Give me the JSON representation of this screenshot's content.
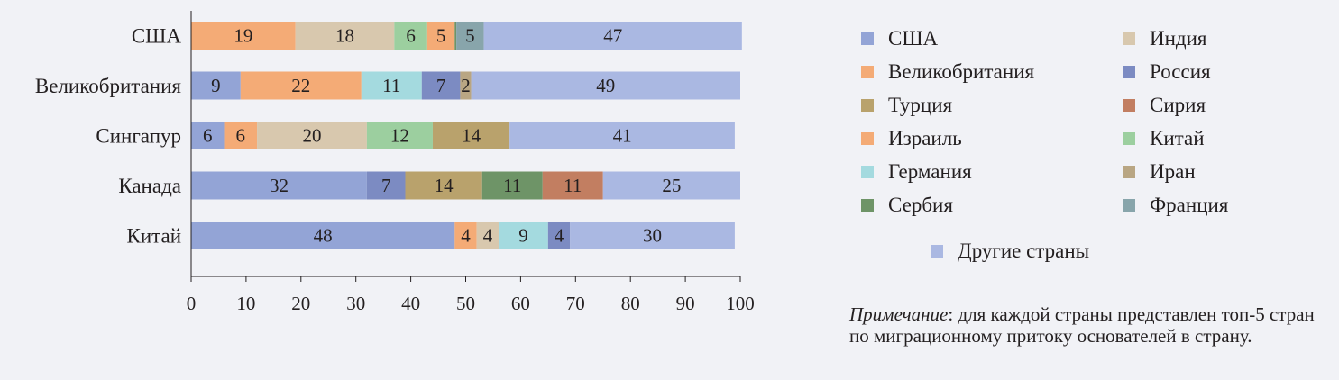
{
  "chart_data": {
    "type": "bar",
    "orientation": "horizontal",
    "stacked": true,
    "xlim": [
      0,
      100
    ],
    "xticks": [
      0,
      10,
      20,
      30,
      40,
      50,
      60,
      70,
      80,
      90,
      100
    ],
    "grid": false,
    "legend_position": "right",
    "colors": {
      "США": "#93a4d6",
      "Великобритания": "#f4ab76",
      "Турция": "#b9a26c",
      "Израиль": "#f4ab76",
      "Германия": "#a4dadf",
      "Сербия": "#6e9467",
      "Индия": "#d8c8ae",
      "Россия": "#7c8bc2",
      "Сирия": "#c27e61",
      "Китай": "#9ccf9f",
      "Иран": "#b9a683",
      "Франция": "#88a5ab",
      "Другие страны": "#aab8e2"
    },
    "bars": [
      {
        "label": "США",
        "segments": [
          {
            "origin": "Великобритания",
            "value": 19
          },
          {
            "origin": "Индия",
            "value": 18
          },
          {
            "origin": "Китай",
            "value": 6
          },
          {
            "origin": "Израиль",
            "value": 5
          },
          {
            "origin": "Сербия",
            "value": 0.3,
            "label": ""
          },
          {
            "origin": "Франция",
            "value": 5
          },
          {
            "origin": "Другие страны",
            "value": 47
          }
        ]
      },
      {
        "label": "Великобритания",
        "segments": [
          {
            "origin": "США",
            "value": 9
          },
          {
            "origin": "Израиль",
            "value": 22
          },
          {
            "origin": "Германия",
            "value": 11
          },
          {
            "origin": "Россия",
            "value": 7
          },
          {
            "origin": "Иран",
            "value": 2
          },
          {
            "origin": "Другие страны",
            "value": 49
          }
        ]
      },
      {
        "label": "Сингапур",
        "segments": [
          {
            "origin": "США",
            "value": 6
          },
          {
            "origin": "Великобритания",
            "value": 6
          },
          {
            "origin": "Индия",
            "value": 20
          },
          {
            "origin": "Китай",
            "value": 12
          },
          {
            "origin": "Турция",
            "value": 14
          },
          {
            "origin": "Другие страны",
            "value": 41
          }
        ]
      },
      {
        "label": "Канада",
        "segments": [
          {
            "origin": "США",
            "value": 32
          },
          {
            "origin": "Россия",
            "value": 7
          },
          {
            "origin": "Турция",
            "value": 14
          },
          {
            "origin": "Сербия",
            "value": 11
          },
          {
            "origin": "Сирия",
            "value": 11
          },
          {
            "origin": "Другие страны",
            "value": 25
          }
        ]
      },
      {
        "label": "Китай",
        "segments": [
          {
            "origin": "США",
            "value": 48
          },
          {
            "origin": "Израиль",
            "value": 4
          },
          {
            "origin": "Индия",
            "value": 4
          },
          {
            "origin": "Германия",
            "value": 9
          },
          {
            "origin": "Россия",
            "value": 4
          },
          {
            "origin": "Другие страны",
            "value": 30
          }
        ]
      }
    ],
    "legend": [
      {
        "name": "США",
        "column": 1
      },
      {
        "name": "Великобритания",
        "column": 1
      },
      {
        "name": "Турция",
        "column": 1
      },
      {
        "name": "Израиль",
        "column": 1
      },
      {
        "name": "Германия",
        "column": 1
      },
      {
        "name": "Сербия",
        "column": 1
      },
      {
        "name": "Индия",
        "column": 2
      },
      {
        "name": "Россия",
        "column": 2
      },
      {
        "name": "Сирия",
        "column": 2
      },
      {
        "name": "Китай",
        "column": 2
      },
      {
        "name": "Иран",
        "column": 2
      },
      {
        "name": "Франция",
        "column": 2
      },
      {
        "name": "Другие страны",
        "column": 0
      }
    ]
  },
  "note": {
    "label": "Примечание",
    "text": ": для каждой страны представлен топ-5 стран по миграционному притоку основателей в страну."
  }
}
